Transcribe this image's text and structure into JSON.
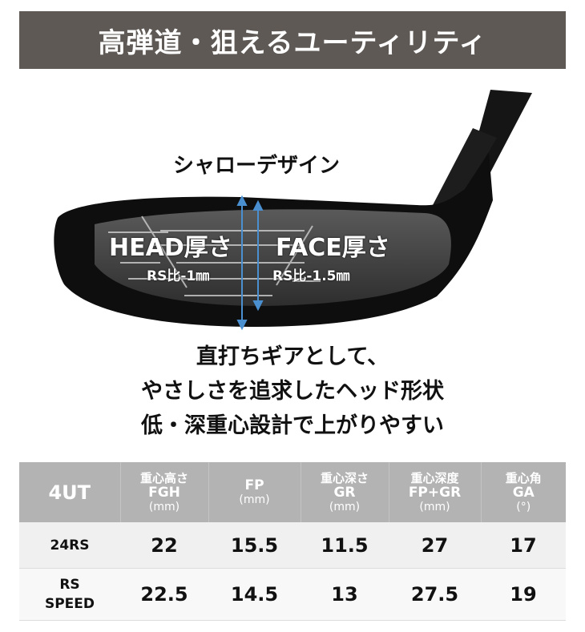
{
  "banner": {
    "title": "高弾道・狙えるユーティリティ"
  },
  "figure": {
    "design_label": "シャローデザイン",
    "head_label": "HEAD厚さ",
    "head_note": "RS比-1㎜",
    "face_label": "FACE厚さ",
    "face_note": "RS比-1.5㎜",
    "arrow_color": "#4a8fd0"
  },
  "copy": [
    "直打ちギアとして、",
    "やさしさを追求したヘッド形状",
    "低・深重心設計で上がりやすい"
  ],
  "table": {
    "corner": "4UT",
    "columns": [
      {
        "jp": "重心高さ",
        "code": "FGH",
        "unit": "(mm)"
      },
      {
        "jp": "",
        "code": "FP",
        "unit": "(mm)"
      },
      {
        "jp": "重心深さ",
        "code": "GR",
        "unit": "(mm)"
      },
      {
        "jp": "重心深度",
        "code": "FP+GR",
        "unit": "(mm)"
      },
      {
        "jp": "重心角",
        "code": "GA",
        "unit": "(°)"
      }
    ],
    "rows": [
      {
        "model": "24RS",
        "model2": "",
        "values": [
          "22",
          "15.5",
          "11.5",
          "27",
          "17"
        ]
      },
      {
        "model": "RS",
        "model2": "SPEED",
        "values": [
          "22.5",
          "14.5",
          "13",
          "27.5",
          "19"
        ]
      }
    ]
  }
}
